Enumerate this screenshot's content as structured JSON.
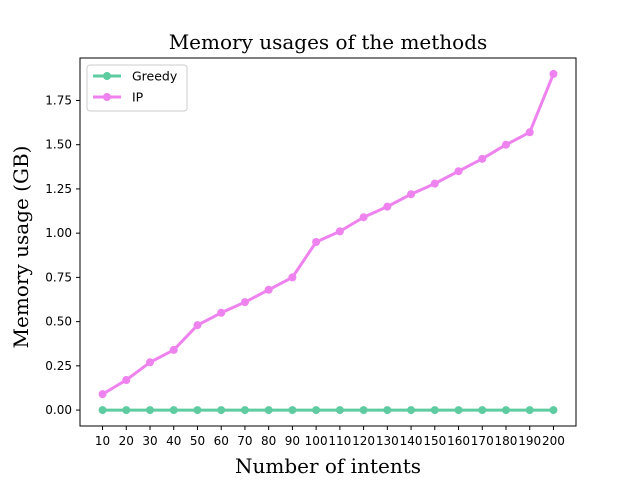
{
  "chart_data": {
    "type": "line",
    "title": "Memory usages of the methods",
    "xlabel": "Number of intents",
    "ylabel": "Memory usage (GB)",
    "x": [
      10,
      20,
      30,
      40,
      50,
      60,
      70,
      80,
      90,
      100,
      110,
      120,
      130,
      140,
      150,
      160,
      170,
      180,
      190,
      200
    ],
    "xtick_labels": [
      "10",
      "20",
      "30",
      "40",
      "50",
      "60",
      "70",
      "80",
      "90",
      "100",
      "110",
      "120",
      "130",
      "140",
      "150",
      "160",
      "170",
      "180",
      "190",
      "200"
    ],
    "ylim": [
      -0.09,
      1.99
    ],
    "yticks": [
      0.0,
      0.25,
      0.5,
      0.75,
      1.0,
      1.25,
      1.5,
      1.75
    ],
    "ytick_labels": [
      "0.00",
      "0.25",
      "0.50",
      "0.75",
      "1.00",
      "1.25",
      "1.50",
      "1.75"
    ],
    "grid": false,
    "legend_position": "top-left",
    "series": [
      {
        "name": "Greedy",
        "color": "#5ecba1",
        "values": [
          0,
          0,
          0,
          0,
          0,
          0,
          0,
          0,
          0,
          0,
          0,
          0,
          0,
          0,
          0,
          0,
          0,
          0,
          0,
          0
        ]
      },
      {
        "name": "IP",
        "color": "#ee82ee",
        "values": [
          0.09,
          0.17,
          0.27,
          0.34,
          0.48,
          0.55,
          0.61,
          0.68,
          0.75,
          0.95,
          1.01,
          1.09,
          1.15,
          1.22,
          1.28,
          1.35,
          1.42,
          1.5,
          1.57,
          1.9
        ]
      }
    ]
  }
}
